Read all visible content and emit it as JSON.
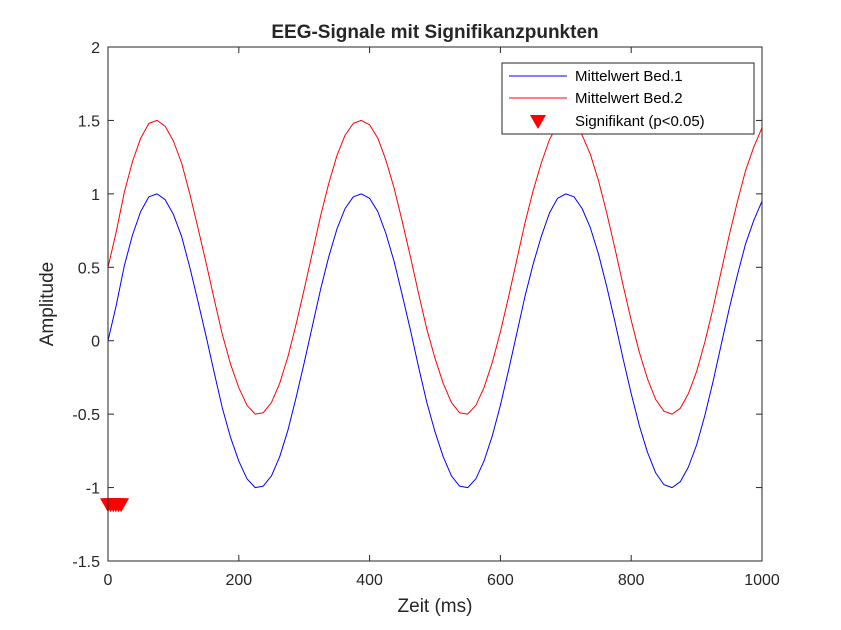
{
  "chart_data": {
    "type": "line",
    "title": "EEG-Signale mit Signifikanzpunkten",
    "xlabel": "Zeit (ms)",
    "ylabel": "Amplitude",
    "xlim": [
      0,
      1000
    ],
    "ylim": [
      -1.5,
      2
    ],
    "xticks": [
      0,
      200,
      400,
      600,
      800,
      1000
    ],
    "xtick_labels": [
      "0",
      "200",
      "400",
      "600",
      "800",
      "1000"
    ],
    "yticks": [
      -1.5,
      -1,
      -0.5,
      0,
      0.5,
      1,
      1.5,
      2
    ],
    "ytick_labels": [
      "-1.5",
      "-1",
      "-0.5",
      "0",
      "0.5",
      "1",
      "1.5",
      "2"
    ],
    "grid": false,
    "legend_position": "top-right",
    "series": [
      {
        "name": "Mittelwert Bed.1",
        "color": "#0000ff",
        "x": [
          0,
          12.5,
          25,
          37.5,
          50,
          62.5,
          75,
          87.5,
          100,
          112.5,
          125,
          137.5,
          150,
          162.5,
          175,
          187.5,
          200,
          212.5,
          225,
          237.5,
          250,
          262.5,
          275,
          287.5,
          300,
          312.5,
          325,
          337.5,
          350,
          362.5,
          375,
          387.5,
          400,
          412.5,
          425,
          437.5,
          450,
          462.5,
          475,
          487.5,
          500,
          512.5,
          525,
          537.5,
          550,
          562.5,
          575,
          587.5,
          600,
          612.5,
          625,
          637.5,
          650,
          662.5,
          675,
          687.5,
          700,
          712.5,
          725,
          737.5,
          750,
          762.5,
          775,
          787.5,
          800,
          812.5,
          825,
          837.5,
          850,
          862.5,
          875,
          887.5,
          900,
          912.5,
          925,
          937.5,
          950,
          962.5,
          975,
          987.5,
          1000
        ],
        "values": [
          0.0,
          0.24,
          0.51,
          0.72,
          0.88,
          0.98,
          1.0,
          0.96,
          0.86,
          0.71,
          0.5,
          0.27,
          0.03,
          -0.22,
          -0.46,
          -0.66,
          -0.82,
          -0.94,
          -1.0,
          -0.99,
          -0.92,
          -0.79,
          -0.61,
          -0.39,
          -0.15,
          0.1,
          0.35,
          0.57,
          0.76,
          0.9,
          0.98,
          1.0,
          0.97,
          0.88,
          0.73,
          0.54,
          0.31,
          0.07,
          -0.18,
          -0.42,
          -0.62,
          -0.79,
          -0.92,
          -0.99,
          -1.0,
          -0.94,
          -0.82,
          -0.65,
          -0.44,
          -0.2,
          0.05,
          0.3,
          0.52,
          0.71,
          0.87,
          0.97,
          1.0,
          0.98,
          0.9,
          0.77,
          0.59,
          0.37,
          0.13,
          -0.12,
          -0.36,
          -0.58,
          -0.76,
          -0.9,
          -0.98,
          -1.0,
          -0.96,
          -0.86,
          -0.71,
          -0.51,
          -0.28,
          -0.03,
          0.22,
          0.45,
          0.66,
          0.82,
          0.95
        ]
      },
      {
        "name": "Mittelwert Bed.2",
        "color": "#ff0000",
        "x": [
          0,
          12.5,
          25,
          37.5,
          50,
          62.5,
          75,
          87.5,
          100,
          112.5,
          125,
          137.5,
          150,
          162.5,
          175,
          187.5,
          200,
          212.5,
          225,
          237.5,
          250,
          262.5,
          275,
          287.5,
          300,
          312.5,
          325,
          337.5,
          350,
          362.5,
          375,
          387.5,
          400,
          412.5,
          425,
          437.5,
          450,
          462.5,
          475,
          487.5,
          500,
          512.5,
          525,
          537.5,
          550,
          562.5,
          575,
          587.5,
          600,
          612.5,
          625,
          637.5,
          650,
          662.5,
          675,
          687.5,
          700,
          712.5,
          725,
          737.5,
          750,
          762.5,
          775,
          787.5,
          800,
          812.5,
          825,
          837.5,
          850,
          862.5,
          875,
          887.5,
          900,
          912.5,
          925,
          937.5,
          950,
          962.5,
          975,
          987.5,
          1000
        ],
        "values": [
          0.5,
          0.74,
          1.01,
          1.22,
          1.38,
          1.48,
          1.5,
          1.46,
          1.36,
          1.21,
          1.0,
          0.77,
          0.53,
          0.28,
          0.04,
          -0.16,
          -0.32,
          -0.44,
          -0.5,
          -0.49,
          -0.42,
          -0.29,
          -0.11,
          0.11,
          0.35,
          0.6,
          0.85,
          1.07,
          1.26,
          1.4,
          1.48,
          1.5,
          1.47,
          1.38,
          1.23,
          1.04,
          0.81,
          0.57,
          0.32,
          0.08,
          -0.12,
          -0.29,
          -0.42,
          -0.49,
          -0.5,
          -0.44,
          -0.32,
          -0.15,
          0.06,
          0.3,
          0.55,
          0.8,
          1.02,
          1.21,
          1.37,
          1.47,
          1.5,
          1.48,
          1.4,
          1.27,
          1.09,
          0.87,
          0.63,
          0.38,
          0.14,
          -0.08,
          -0.26,
          -0.4,
          -0.48,
          -0.5,
          -0.46,
          -0.36,
          -0.21,
          -0.01,
          0.22,
          0.47,
          0.72,
          0.95,
          1.16,
          1.32,
          1.45
        ]
      }
    ],
    "markers": {
      "name": "Signifikant (p<0.05)",
      "color": "#ff0000",
      "symbol": "triangle-down",
      "x": [
        0,
        4,
        8,
        12,
        16,
        20
      ],
      "y": -1.12
    }
  }
}
